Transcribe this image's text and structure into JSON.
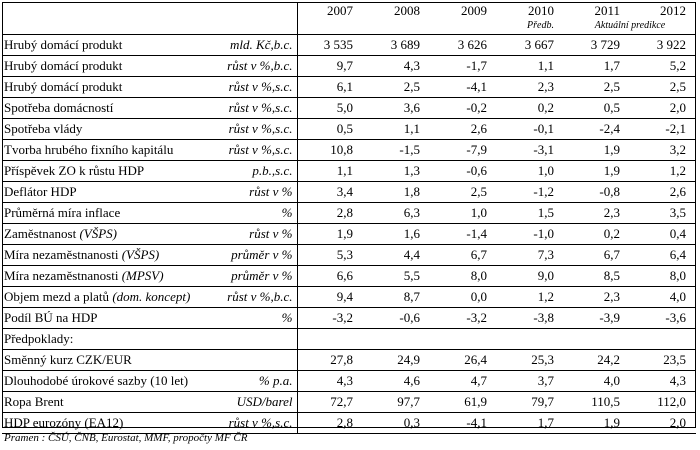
{
  "columns": [
    "2007",
    "2008",
    "2009",
    "2010",
    "2011",
    "2012"
  ],
  "subheaders": {
    "col_2010": "Předb.",
    "col_2011_2012": "Aktuální predikce"
  },
  "rows": [
    {
      "label": "Hrubý domácí produkt",
      "unit": "mld. Kč,b.c.",
      "values": [
        "3 535",
        "3 689",
        "3 626",
        "3 667",
        "3 729",
        "3 922"
      ]
    },
    {
      "label": "Hrubý domácí produkt",
      "unit": "růst v %,b.c.",
      "values": [
        "9,7",
        "4,3",
        "-1,7",
        "1,1",
        "1,7",
        "5,2"
      ]
    },
    {
      "label": "Hrubý domácí produkt",
      "unit": "růst v %,s.c.",
      "values": [
        "6,1",
        "2,5",
        "-4,1",
        "2,3",
        "2,5",
        "2,5"
      ]
    },
    {
      "label": "Spotřeba domácností",
      "unit": "růst v %,s.c.",
      "values": [
        "5,0",
        "3,6",
        "-0,2",
        "0,2",
        "0,5",
        "2,0"
      ]
    },
    {
      "label": "Spotřeba vlády",
      "unit": "růst v %,s.c.",
      "values": [
        "0,5",
        "1,1",
        "2,6",
        "-0,1",
        "-2,4",
        "-2,1"
      ]
    },
    {
      "label": "Tvorba hrubého fixního kapitálu",
      "unit": "růst v %,s.c.",
      "values": [
        "10,8",
        "-1,5",
        "-7,9",
        "-3,1",
        "1,9",
        "3,2"
      ]
    },
    {
      "label": "Příspěvek ZO k růstu HDP",
      "unit": "p.b.,s.c.",
      "values": [
        "1,1",
        "1,3",
        "-0,6",
        "1,0",
        "1,9",
        "1,2"
      ]
    },
    {
      "label": "Deflátor HDP",
      "unit": "růst v %",
      "values": [
        "3,4",
        "1,8",
        "2,5",
        "-1,2",
        "-0,8",
        "2,6"
      ]
    },
    {
      "label": "Průměrná míra inflace",
      "unit": "%",
      "values": [
        "2,8",
        "6,3",
        "1,0",
        "1,5",
        "2,3",
        "3,5"
      ]
    },
    {
      "label": "Zaměstnanost ",
      "label_italic": "(VŠPS)",
      "unit": "růst v %",
      "values": [
        "1,9",
        "1,6",
        "-1,4",
        "-1,0",
        "0,2",
        "0,4"
      ]
    },
    {
      "label": "Míra nezaměstnanosti ",
      "label_italic": "(VŠPS)",
      "unit": "průměr v %",
      "values": [
        "5,3",
        "4,4",
        "6,7",
        "7,3",
        "6,7",
        "6,4"
      ]
    },
    {
      "label": "Míra nezaměstnanosti ",
      "label_italic": "(MPSV)",
      "unit": "průměr v %",
      "values": [
        "6,6",
        "5,5",
        "8,0",
        "9,0",
        "8,5",
        "8,0"
      ]
    },
    {
      "label": "Objem mezd a platů ",
      "label_italic": "(dom. koncept)",
      "unit": "růst v %,b.c.",
      "values": [
        "9,4",
        "8,7",
        "0,0",
        "1,2",
        "2,3",
        "4,0"
      ]
    },
    {
      "label": "Podíl BÚ na HDP",
      "unit": "%",
      "values": [
        "-3,2",
        "-0,6",
        "-3,2",
        "-3,8",
        "-3,9",
        "-3,6"
      ]
    },
    {
      "label": "Předpoklady:",
      "unit": "",
      "values": [
        "",
        "",
        "",
        "",
        "",
        ""
      ]
    },
    {
      "label": "Směnný kurz CZK/EUR",
      "unit": "",
      "values": [
        "27,8",
        "24,9",
        "26,4",
        "25,3",
        "24,2",
        "23,5"
      ]
    },
    {
      "label": "Dlouhodobé úrokové sazby (10 let)",
      "unit": "% p.a.",
      "values": [
        "4,3",
        "4,6",
        "4,7",
        "3,7",
        "4,0",
        "4,3"
      ]
    },
    {
      "label": "Ropa Brent",
      "unit": "USD/barel",
      "values": [
        "72,7",
        "97,7",
        "61,9",
        "79,7",
        "110,5",
        "112,0"
      ]
    },
    {
      "label": "HDP eurozóny (EA12)",
      "unit": "růst v %,s.c.",
      "values": [
        "2,8",
        "0,3",
        "-4,1",
        "1,7",
        "1,9",
        "2,0"
      ]
    }
  ],
  "source": "Pramen : ČSÚ, ČNB, Eurostat, MMF, propočty MF ČR"
}
